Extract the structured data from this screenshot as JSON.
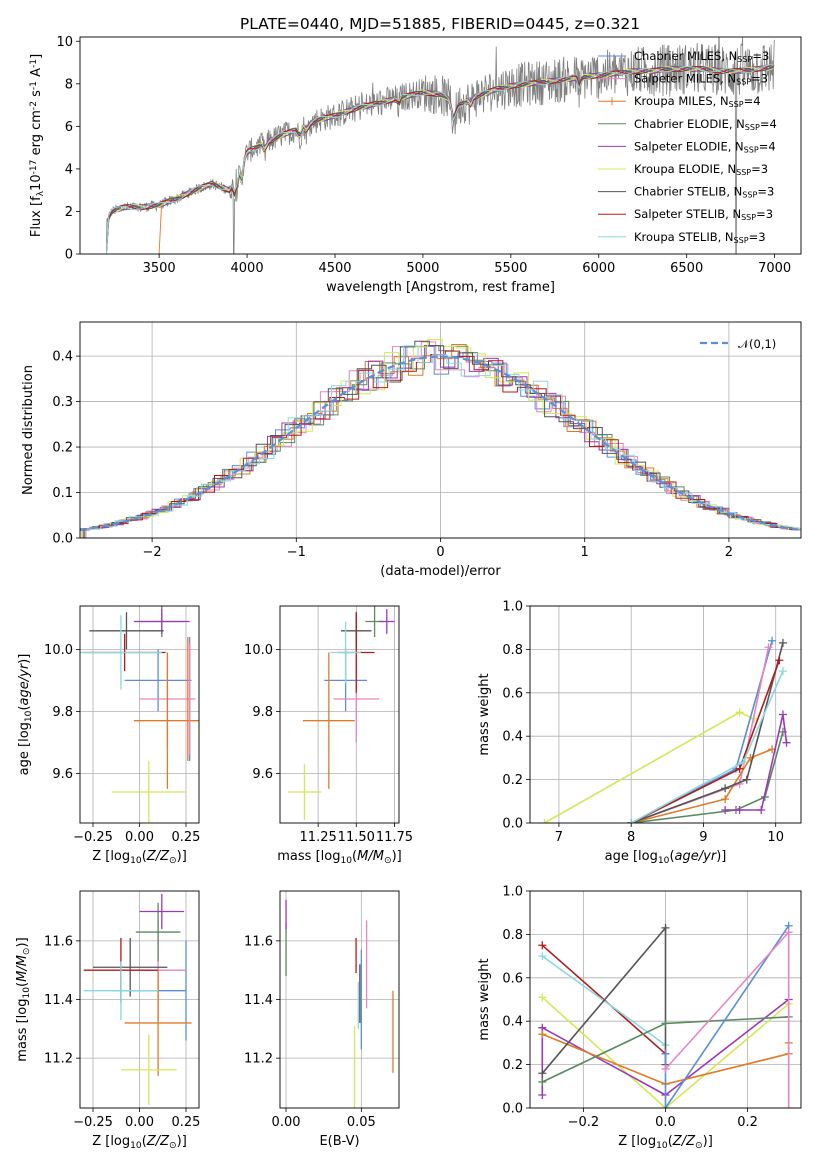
{
  "figure": {
    "title": "PLATE=0440, MJD=51885, FIBERID=0445, z=0.321"
  },
  "series": [
    {
      "name": "Chabrier MILES, N$_{SSP}$=3",
      "label_main": "Chabrier MILES, N",
      "label_sub": "SSP",
      "label_end": "=3",
      "color": "#5b8fd9"
    },
    {
      "name": "Salpeter MILES, N$_{SSP}$=3",
      "label_main": "Salpeter MILES, N",
      "label_sub": "SSP",
      "label_end": "=3",
      "color": "#e586c0"
    },
    {
      "name": "Kroupa MILES, N$_{SSP}$=4",
      "label_main": "Kroupa MILES, N",
      "label_sub": "SSP",
      "label_end": "=4",
      "color": "#e07b28"
    },
    {
      "name": "Chabrier ELODIE, N$_{SSP}$=4",
      "label_main": "Chabrier ELODIE, N",
      "label_sub": "SSP",
      "label_end": "=4",
      "color": "#5a8a60"
    },
    {
      "name": "Salpeter ELODIE, N$_{SSP}$=4",
      "label_main": "Salpeter ELODIE, N",
      "label_sub": "SSP",
      "label_end": "=4",
      "color": "#9a3ab8"
    },
    {
      "name": "Kroupa ELODIE, N$_{SSP}$=3",
      "label_main": "Kroupa ELODIE, N",
      "label_sub": "SSP",
      "label_end": "=3",
      "color": "#d4e857"
    },
    {
      "name": "Chabrier STELIB, N$_{SSP}$=3",
      "label_main": "Chabrier STELIB, N",
      "label_sub": "SSP",
      "label_end": "=3",
      "color": "#555555"
    },
    {
      "name": "Salpeter STELIB, N$_{SSP}$=3",
      "label_main": "Salpeter STELIB, N",
      "label_sub": "SSP",
      "label_end": "=3",
      "color": "#b01c1c"
    },
    {
      "name": "Kroupa STELIB, N$_{SSP}$=3",
      "label_main": "Kroupa STELIB, N",
      "label_sub": "SSP",
      "label_end": "=3",
      "color": "#8ad8e0"
    }
  ],
  "chart_data": [
    {
      "id": "spectrum",
      "type": "line",
      "xlabel": "wavelength [Angstrom, rest frame]",
      "ylabel": "Flux [f$_\\lambda$10$^{-17}$ erg cm$^{-2}$ s$^{-1}$ A$^{-1}$]",
      "xlim": [
        3050,
        7150
      ],
      "ylim": [
        0,
        10.2
      ],
      "xticks": [
        3500,
        4000,
        4500,
        5000,
        5500,
        6000,
        6500,
        7000
      ],
      "yticks": [
        0,
        2,
        4,
        6,
        8,
        10
      ],
      "data_color": "#7f7f7f",
      "continuum": {
        "x": [
          3200,
          3230,
          3300,
          3400,
          3500,
          3600,
          3700,
          3800,
          3900,
          3950,
          4000,
          4100,
          4200,
          4300,
          4400,
          4500,
          4600,
          4700,
          4800,
          4900,
          5000,
          5100,
          5200,
          5300,
          5400,
          5500,
          5600,
          5700,
          5800,
          5900,
          6000,
          6100,
          6200,
          6300,
          6400,
          6500,
          6600,
          6700,
          6800,
          6900,
          7000
        ],
        "y": [
          1.5,
          2.0,
          2.2,
          2.2,
          2.3,
          2.6,
          3.0,
          3.3,
          3.0,
          3.6,
          4.8,
          5.2,
          5.6,
          5.9,
          6.3,
          6.5,
          6.8,
          7.0,
          7.2,
          7.4,
          7.6,
          7.5,
          7.0,
          7.4,
          7.7,
          7.9,
          8.0,
          8.1,
          8.2,
          8.3,
          8.4,
          8.5,
          8.6,
          8.6,
          8.7,
          8.7,
          8.7,
          8.6,
          8.6,
          8.7,
          8.8
        ]
      },
      "grid": false
    },
    {
      "id": "residuals",
      "type": "histogram",
      "xlabel": "(data-model)/error",
      "ylabel": "Normed distribution",
      "xlim": [
        -2.5,
        2.5
      ],
      "ylim": [
        0,
        0.475
      ],
      "xticks": [
        -2,
        -1,
        0,
        1,
        2
      ],
      "yticks": [
        0.0,
        0.1,
        0.2,
        0.3,
        0.4
      ],
      "grid": true,
      "legend": "$\\mathcal{N}(0,1)$",
      "reference_curve": {
        "type": "gaussian",
        "mean": 0,
        "sigma": 1,
        "color": "#5b8fd9"
      }
    },
    {
      "id": "age-vs-z",
      "type": "errorbar",
      "xlabel": "Z [log$_{10}$($Z/Z_\\odot$)]",
      "ylabel": "age  [log$_{10}$($age/yr$)]",
      "xlim": [
        -0.32,
        0.32
      ],
      "ylim": [
        9.44,
        10.14
      ],
      "xticks": [
        -0.25,
        0,
        0.25
      ],
      "yticks": [
        9.6,
        9.8,
        10.0
      ],
      "grid": true,
      "points": [
        {
          "series": 0,
          "x": 0.1,
          "y": 9.9,
          "xerr": 0.18,
          "yerr": 0.1
        },
        {
          "series": 1,
          "x": 0.15,
          "y": 9.84,
          "xerr": 0.15,
          "yerr": 0.15
        },
        {
          "series": 2,
          "x": 0.15,
          "y": 9.77,
          "xerr": 0.18,
          "yerr": 0.22
        },
        {
          "series": 3,
          "x": 0.12,
          "y": 10.09,
          "xerr": 0.12,
          "yerr": 0.05
        },
        {
          "series": 4,
          "x": 0.12,
          "y": 10.09,
          "xerr": 0.15,
          "yerr": 0.04
        },
        {
          "series": 5,
          "x": 0.05,
          "y": 9.54,
          "xerr": 0.2,
          "yerr": 0.1
        },
        {
          "series": 6,
          "x": -0.07,
          "y": 10.06,
          "xerr": 0.2,
          "yerr": 0.06
        },
        {
          "series": 7,
          "x": -0.08,
          "y": 9.99,
          "xerr": 0.22,
          "yerr": 0.06
        },
        {
          "series": 8,
          "x": -0.1,
          "y": 9.99,
          "xerr": 0.22,
          "yerr": 0.12
        },
        {
          "series": 2,
          "x": 0.26,
          "y": 9.84,
          "xerr": 0.0,
          "yerr": 0.2
        },
        {
          "series": 0,
          "x": 0.27,
          "y": 9.84,
          "xerr": 0.0,
          "yerr": 0.2
        },
        {
          "series": 1,
          "x": 0.27,
          "y": 9.84,
          "xerr": 0.0,
          "yerr": 0.18
        }
      ]
    },
    {
      "id": "age-vs-mass",
      "type": "errorbar",
      "xlabel": "mass [log$_{10}$($M/M_\\odot$)]",
      "ylabel": "",
      "xlim": [
        11.0,
        11.78
      ],
      "ylim": [
        9.44,
        10.14
      ],
      "xticks": [
        11.25,
        11.5,
        11.75
      ],
      "yticks": [
        9.6,
        9.8,
        10.0
      ],
      "grid": true,
      "points": [
        {
          "series": 0,
          "x": 11.43,
          "y": 9.9,
          "xerr": 0.14,
          "yerr": 0.1
        },
        {
          "series": 1,
          "x": 11.5,
          "y": 9.84,
          "xerr": 0.15,
          "yerr": 0.14
        },
        {
          "series": 2,
          "x": 11.32,
          "y": 9.77,
          "xerr": 0.17,
          "yerr": 0.22
        },
        {
          "series": 3,
          "x": 11.62,
          "y": 10.09,
          "xerr": 0.06,
          "yerr": 0.05
        },
        {
          "series": 4,
          "x": 11.7,
          "y": 10.09,
          "xerr": 0.05,
          "yerr": 0.04
        },
        {
          "series": 5,
          "x": 11.16,
          "y": 9.54,
          "xerr": 0.11,
          "yerr": 0.09
        },
        {
          "series": 6,
          "x": 11.5,
          "y": 10.06,
          "xerr": 0.1,
          "yerr": 0.06
        },
        {
          "series": 7,
          "x": 11.5,
          "y": 9.99,
          "xerr": 0.12,
          "yerr": 0.13
        },
        {
          "series": 8,
          "x": 11.43,
          "y": 9.99,
          "xerr": 0.1,
          "yerr": 0.1
        }
      ]
    },
    {
      "id": "mass-weight-vs-age",
      "type": "line",
      "xlabel": "age  [log$_{10}$($age/yr$)]",
      "ylabel": "mass weight",
      "xlim": [
        6.6,
        10.35
      ],
      "ylim": [
        0,
        1.0
      ],
      "xticks": [
        7,
        8,
        9,
        10
      ],
      "yticks": [
        0.0,
        0.2,
        0.4,
        0.6,
        0.8,
        1.0
      ],
      "grid": true,
      "lines": [
        {
          "series": 5,
          "x": [
            6.8,
            9.5,
            9.7
          ],
          "y": [
            0.0,
            0.51,
            0.48
          ]
        },
        {
          "series": 0,
          "x": [
            8.0,
            9.45,
            9.95
          ],
          "y": [
            0.0,
            0.25,
            0.84
          ]
        },
        {
          "series": 1,
          "x": [
            8.0,
            9.5,
            9.9
          ],
          "y": [
            0.0,
            0.18,
            0.81
          ]
        },
        {
          "series": 2,
          "x": [
            8.0,
            9.3,
            9.65,
            9.95
          ],
          "y": [
            0.0,
            0.11,
            0.3,
            0.34
          ]
        },
        {
          "series": 3,
          "x": [
            8.0,
            9.45,
            9.85,
            10.1
          ],
          "y": [
            0.0,
            0.06,
            0.12,
            0.42
          ]
        },
        {
          "series": 4,
          "x": [
            9.3,
            9.5,
            9.8,
            10.1,
            10.15
          ],
          "y": [
            0.06,
            0.06,
            0.06,
            0.5,
            0.37
          ]
        },
        {
          "series": 6,
          "x": [
            8.0,
            9.3,
            9.6,
            10.1
          ],
          "y": [
            0.0,
            0.16,
            0.2,
            0.83
          ]
        },
        {
          "series": 7,
          "x": [
            8.0,
            9.5,
            10.05
          ],
          "y": [
            0.0,
            0.25,
            0.75
          ]
        },
        {
          "series": 8,
          "x": [
            8.0,
            9.55,
            10.1
          ],
          "y": [
            0.0,
            0.28,
            0.7
          ]
        }
      ]
    },
    {
      "id": "mass-vs-z",
      "type": "errorbar",
      "xlabel": "Z [log$_{10}$($Z/Z_\\odot$)]",
      "ylabel": "mass [log$_{10}$($M/M_\\odot$)]",
      "xlim": [
        -0.32,
        0.32
      ],
      "ylim": [
        11.03,
        11.77
      ],
      "xticks": [
        -0.25,
        0,
        0.25
      ],
      "yticks": [
        11.2,
        11.4,
        11.6
      ],
      "grid": true,
      "points": [
        {
          "series": 0,
          "x": 0.05,
          "y": 11.43,
          "xerr": 0.2,
          "yerr": 0.0
        },
        {
          "series": 0,
          "x": 0.25,
          "y": 11.43,
          "xerr": 0.0,
          "yerr": 0.17
        },
        {
          "series": 1,
          "x": 0.1,
          "y": 11.5,
          "xerr": 0.15,
          "yerr": 0.17
        },
        {
          "series": 2,
          "x": 0.1,
          "y": 11.32,
          "xerr": 0.18,
          "yerr": 0.18
        },
        {
          "series": 3,
          "x": 0.1,
          "y": 11.63,
          "xerr": 0.12,
          "yerr": 0.1
        },
        {
          "series": 4,
          "x": 0.12,
          "y": 11.7,
          "xerr": 0.12,
          "yerr": 0.06
        },
        {
          "series": 5,
          "x": 0.05,
          "y": 11.16,
          "xerr": 0.15,
          "yerr": 0.12
        },
        {
          "series": 6,
          "x": -0.05,
          "y": 11.51,
          "xerr": 0.2,
          "yerr": 0.1
        },
        {
          "series": 7,
          "x": -0.1,
          "y": 11.5,
          "xerr": 0.2,
          "yerr": 0.11
        },
        {
          "series": 8,
          "x": -0.1,
          "y": 11.43,
          "xerr": 0.2,
          "yerr": 0.1
        }
      ]
    },
    {
      "id": "mass-vs-ebv",
      "type": "errorbar",
      "xlabel": "E(B-V)",
      "ylabel": "",
      "xlim": [
        -0.004,
        0.075
      ],
      "ylim": [
        11.03,
        11.77
      ],
      "xticks": [
        0.0,
        0.05
      ],
      "yticks": [
        11.2,
        11.4,
        11.6
      ],
      "grid": true,
      "points": [
        {
          "series": 0,
          "x": 0.05,
          "y": 11.4,
          "xerr": 0.0,
          "yerr": 0.17
        },
        {
          "series": 1,
          "x": 0.0535,
          "y": 11.52,
          "xerr": 0.0,
          "yerr": 0.15
        },
        {
          "series": 2,
          "x": 0.071,
          "y": 11.29,
          "xerr": 0.0,
          "yerr": 0.14
        },
        {
          "series": 3,
          "x": 0.0,
          "y": 11.57,
          "xerr": 0.0,
          "yerr": 0.09
        },
        {
          "series": 4,
          "x": 0.0,
          "y": 11.69,
          "xerr": 0.0,
          "yerr": 0.05
        },
        {
          "series": 5,
          "x": 0.0455,
          "y": 11.17,
          "xerr": 0.0,
          "yerr": 0.14
        },
        {
          "series": 6,
          "x": 0.049,
          "y": 11.42,
          "xerr": 0.0,
          "yerr": 0.1
        },
        {
          "series": 7,
          "x": 0.0465,
          "y": 11.55,
          "xerr": 0.0,
          "yerr": 0.06
        },
        {
          "series": 8,
          "x": 0.048,
          "y": 11.38,
          "xerr": 0.0,
          "yerr": 0.08
        }
      ]
    },
    {
      "id": "mass-weight-vs-z",
      "type": "line",
      "xlabel": "Z [log$_{10}$($Z/Z_\\odot$)]",
      "ylabel": "mass weight",
      "xlim": [
        -0.33,
        0.33
      ],
      "ylim": [
        0,
        1.0
      ],
      "xticks": [
        -0.2,
        0.0,
        0.2
      ],
      "yticks": [
        0.0,
        0.2,
        0.4,
        0.6,
        0.8,
        1.0
      ],
      "grid": true,
      "lines": [
        {
          "series": 7,
          "x": [
            -0.3,
            0.0
          ],
          "y": [
            0.75,
            0.25
          ]
        },
        {
          "series": 8,
          "x": [
            -0.3,
            0.0
          ],
          "y": [
            0.7,
            0.29
          ]
        },
        {
          "series": 5,
          "x": [
            -0.3,
            0.0,
            0.3
          ],
          "y": [
            0.51,
            0.0,
            0.48
          ]
        },
        {
          "series": 4,
          "x": [
            -0.3,
            -0.3,
            0.0,
            0.3
          ],
          "y": [
            0.06,
            0.37,
            0.06,
            0.5
          ]
        },
        {
          "series": 2,
          "x": [
            -0.3,
            0.0,
            0.3,
            0.3
          ],
          "y": [
            0.34,
            0.11,
            0.25,
            0.3
          ]
        },
        {
          "series": 6,
          "x": [
            -0.3,
            0.0,
            0.0
          ],
          "y": [
            0.16,
            0.83,
            0.2
          ]
        },
        {
          "series": 3,
          "x": [
            -0.3,
            0.0,
            0.3
          ],
          "y": [
            0.12,
            0.39,
            0.42
          ]
        },
        {
          "series": 0,
          "x": [
            0.0,
            0.0,
            0.3
          ],
          "y": [
            0.25,
            0.0,
            0.84
          ]
        },
        {
          "series": 1,
          "x": [
            0.0,
            0.3,
            0.3
          ],
          "y": [
            0.18,
            0.81,
            0.0
          ]
        }
      ]
    }
  ]
}
